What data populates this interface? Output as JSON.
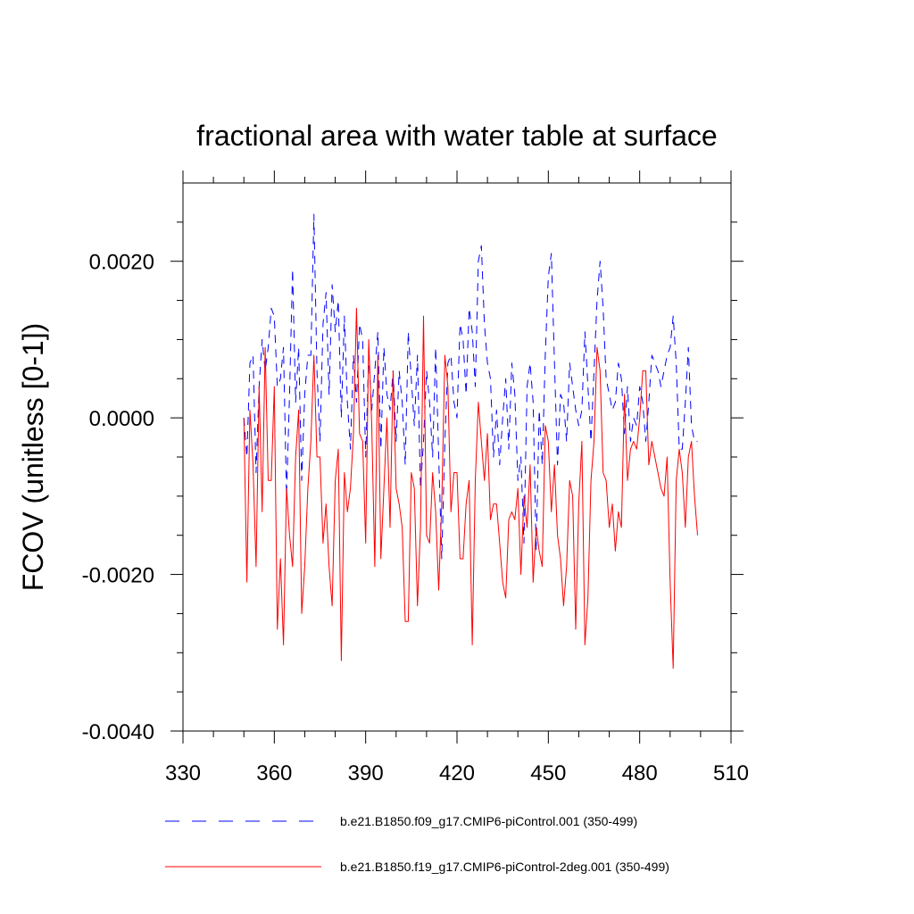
{
  "chart_data": {
    "type": "line",
    "title": "fractional area with water table at surface",
    "xlabel": "",
    "ylabel": "FCOV  (unitless [0-1])",
    "xlim": [
      330,
      510
    ],
    "ylim": [
      -0.004,
      0.003
    ],
    "x_ticks": [
      330,
      360,
      390,
      420,
      450,
      480,
      510
    ],
    "x_tick_labels": [
      "330",
      "360",
      "390",
      "420",
      "450",
      "480",
      "510"
    ],
    "y_ticks": [
      -0.004,
      -0.002,
      0.0,
      0.002
    ],
    "y_tick_labels": [
      "-0.0040",
      "-0.0020",
      "0.0000",
      "0.0020"
    ],
    "x_start": 350,
    "series": [
      {
        "name": "b.e21.B1850.f09_g17.CMIP6-piControl.001 (350-499)",
        "color": "#0000ff",
        "dash": "dashed",
        "values": [
          0.0,
          -0.0005,
          0.0007,
          0.0008,
          -0.0007,
          0.0004,
          0.001,
          0.0006,
          0.0009,
          0.0014,
          0.0013,
          0.0004,
          0.0005,
          0.0009,
          -0.001,
          0.0003,
          0.0019,
          0.0002,
          0.0009,
          -0.0008,
          0.0003,
          0.0008,
          0.0008,
          0.0026,
          0.0006,
          -0.0003,
          0.0012,
          0.0016,
          0.0003,
          0.0017,
          0.0011,
          0.0015,
          0.0,
          0.0013,
          0.0002,
          -0.0004,
          0.0008,
          0.0002,
          0.0012,
          0.001,
          -0.0005,
          0.0008,
          0.0001,
          0.0006,
          0.0011,
          -0.0004,
          0.0009,
          0.0003,
          0.0001,
          0.0006,
          -0.0003,
          0.0006,
          0.0002,
          -0.0006,
          0.0011,
          0.0005,
          -0.0001,
          0.0008,
          -0.0009,
          -0.0003,
          0.0006,
          0.0002,
          -0.0005,
          0.0009,
          -0.0005,
          -0.0018,
          -0.0003,
          0.0007,
          0.0008,
          0.0002,
          0.0,
          0.0012,
          0.001,
          0.0003,
          0.0014,
          0.0011,
          0.0004,
          0.002,
          0.0022,
          0.0012,
          0.0007,
          0.0005,
          -0.0005,
          0.0001,
          -0.0006,
          0.0,
          0.0005,
          -0.0004,
          0.0007,
          0.0003,
          -0.0008,
          -0.0005,
          -0.0016,
          0.0004,
          0.0007,
          0.0002,
          -0.0017,
          0.0001,
          -0.0006,
          0.0008,
          0.0018,
          0.0021,
          0.0007,
          -0.0006,
          0.0003,
          0.0002,
          -0.0003,
          0.0007,
          0.0004,
          0.0001,
          -0.0001,
          0.0001,
          0.0011,
          0.0004,
          -0.0003,
          0.0006,
          0.0015,
          0.002,
          0.0014,
          0.0005,
          0.0003,
          0.0001,
          0.0002,
          0.0007,
          0.0005,
          -0.0002,
          0.0004,
          -0.0003,
          0.0,
          -0.0001,
          0.0004,
          0.0002,
          -0.0003,
          0.0002,
          0.0008,
          0.0007,
          0.0006,
          0.0004,
          0.0006,
          0.0008,
          0.0009,
          0.0013,
          0.0007,
          -0.0004,
          -0.0004,
          0.0002,
          0.0009,
          -0.0001,
          -0.0003,
          -0.0003
        ]
      },
      {
        "name": "b.e21.B1850.f19_g17.CMIP6-piControl-2deg.001 (350-499)",
        "color": "#ff0000",
        "dash": "solid",
        "values": [
          0.0,
          -0.0021,
          0.0001,
          -0.0006,
          -0.0019,
          0.0004,
          -0.0012,
          0.0009,
          -0.0008,
          -0.0008,
          0.0004,
          -0.0027,
          -0.0018,
          -0.0029,
          -0.0009,
          -0.0015,
          -0.0019,
          -0.0005,
          0.0001,
          -0.0025,
          -0.0019,
          -0.0009,
          -0.0003,
          0.0008,
          -0.0005,
          -0.0005,
          -0.0016,
          -0.0011,
          -0.0019,
          -0.0024,
          -0.0008,
          -0.0004,
          -0.0031,
          -0.0007,
          -0.0012,
          -0.0009,
          -0.0002,
          0.0014,
          -0.0002,
          -0.0003,
          -0.0016,
          0.001,
          -0.0001,
          -0.0019,
          0.0008,
          -0.0018,
          -0.0009,
          0.0,
          -0.0014,
          0.0006,
          -0.0009,
          -0.0011,
          -0.0014,
          -0.0026,
          -0.0026,
          -0.0007,
          -0.0009,
          -0.0024,
          -0.0014,
          0.0013,
          -0.0015,
          -0.0016,
          -0.0007,
          -0.0012,
          -0.0022,
          -0.0011,
          0.0008,
          0.0004,
          -0.0012,
          -0.0007,
          -0.0007,
          -0.0018,
          -0.0018,
          -0.0011,
          -0.0008,
          -0.0029,
          -0.0008,
          0.0002,
          -0.0003,
          -0.0008,
          -0.0002,
          -0.0013,
          -0.0011,
          -0.0011,
          -0.0016,
          -0.0021,
          -0.0023,
          -0.0013,
          -0.0012,
          -0.0013,
          -0.0009,
          -0.002,
          -0.001,
          -0.0014,
          -0.0006,
          -0.0021,
          -0.0014,
          -0.0017,
          -0.0019,
          -0.0001,
          -0.0003,
          -0.0012,
          -0.0006,
          -0.0015,
          -0.0018,
          -0.0024,
          -0.0019,
          -0.0008,
          -0.001,
          -0.0027,
          -0.0011,
          -0.0003,
          -0.0029,
          -0.0023,
          -0.0008,
          -0.0003,
          0.0009,
          0.0006,
          -0.0007,
          -0.0008,
          -0.0014,
          -0.0011,
          -0.0017,
          -0.0012,
          -0.0014,
          0.0003,
          -0.0008,
          -0.0004,
          -0.0003,
          -0.0004,
          0.0,
          0.0006,
          0.0006,
          -0.0006,
          -0.0003,
          -0.0005,
          -0.0007,
          -0.0009,
          -0.001,
          -0.0005,
          -0.0021,
          -0.0032,
          -0.0008,
          -0.0004,
          -0.0007,
          -0.0014,
          -0.0005,
          -0.0003,
          -0.001,
          -0.0015
        ]
      }
    ],
    "legend_position": "bottom"
  }
}
